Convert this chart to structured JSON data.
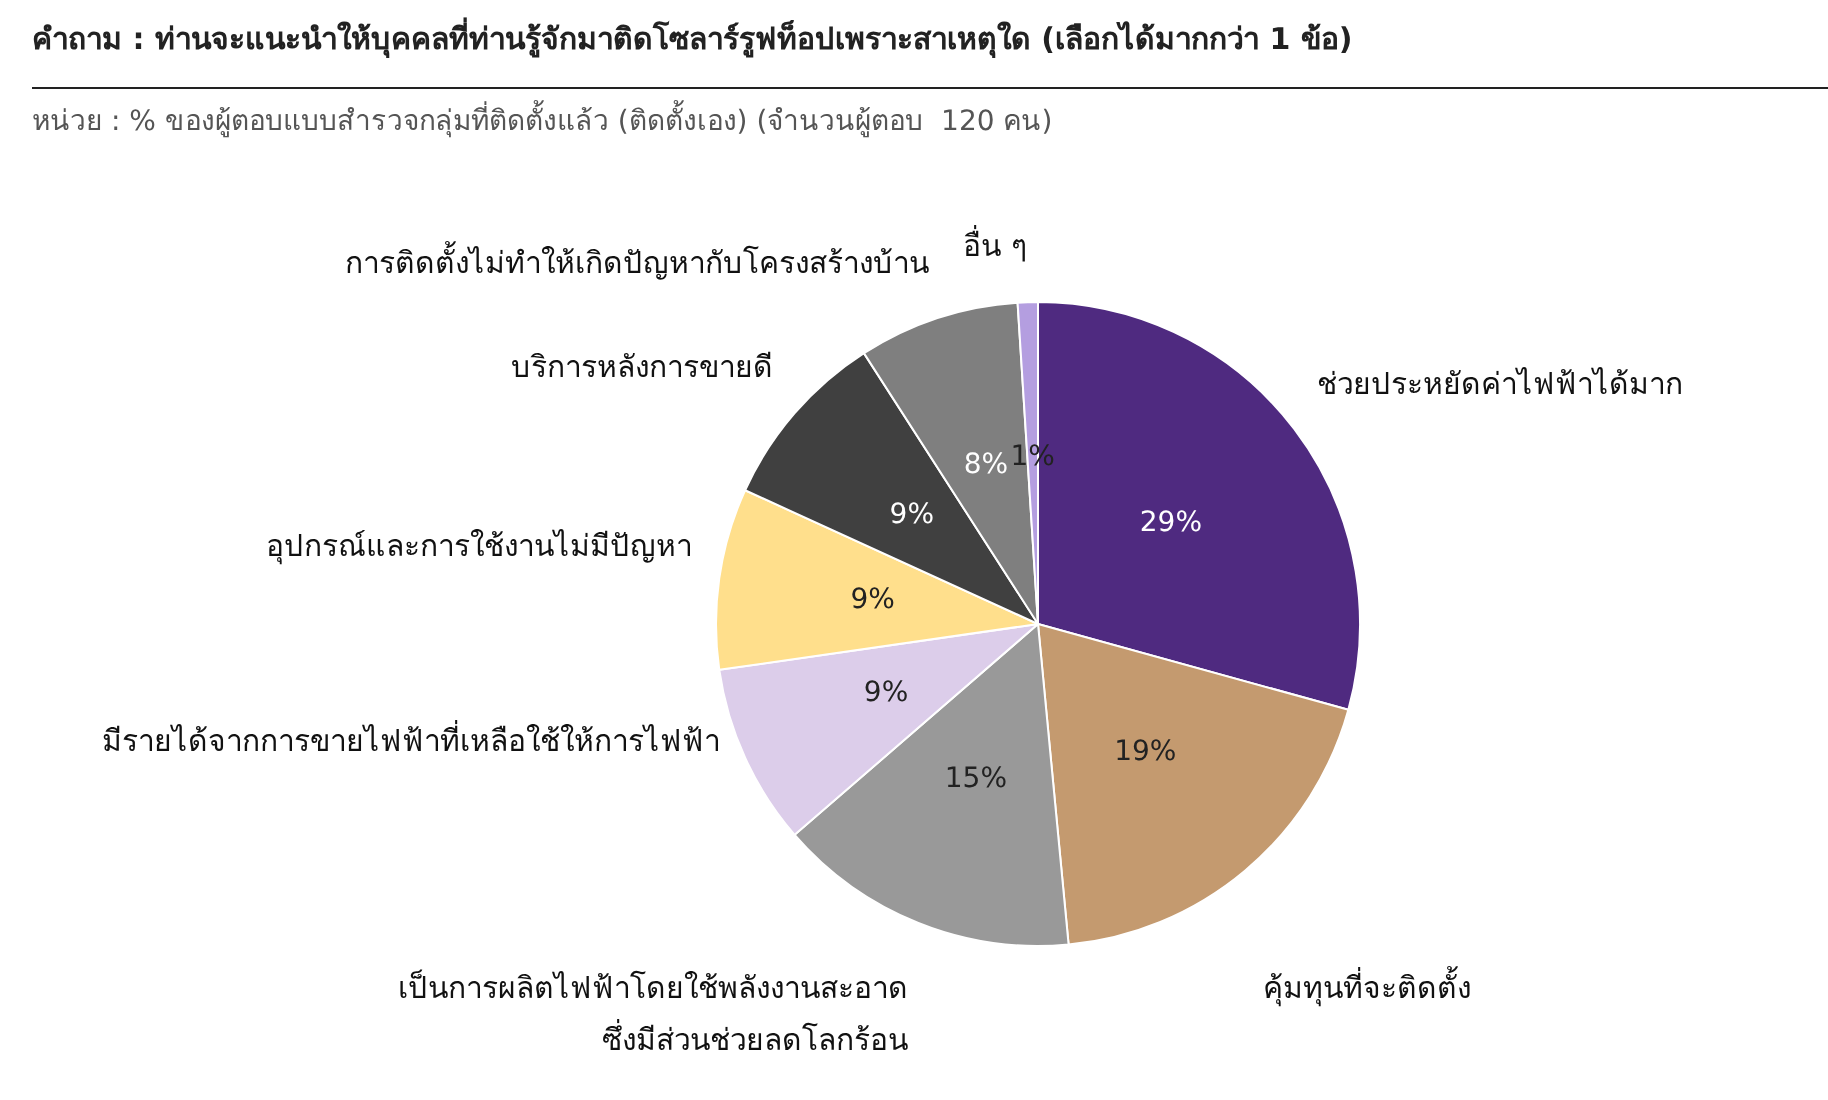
{
  "chart_data": {
    "type": "pie",
    "title": "คำถาม : ท่านจะแนะนำให้บุคคลที่ท่านรู้จักมาติดโซลาร์รูฟท็อปเพราะสาเหตุใด (เลือกได้มากกว่า 1 ข้อ)",
    "subtitle": "หน่วย : % ของผู้ตอบแบบสำรวจกลุ่มที่ติดตั้งแล้ว (ติดตั้งเอง) (จำนวนผู้ตอบ  120 คน)",
    "categories": [
      "ช่วยประหยัดค่าไฟฟ้าได้มาก",
      "คุ้มทุนที่จะติดตั้ง",
      "เป็นการผลิตไฟฟ้าโดยใช้พลังงานสะอาด\nซึ่งมีส่วนช่วยลดโลกร้อน",
      "มีรายได้จากการขายไฟฟ้าที่เหลือใช้ให้การไฟฟ้า",
      "อุปกรณ์และการใช้งานไม่มีปัญหา",
      "บริการหลังการขายดี",
      "การติดตั้งไม่ทำให้เกิดปัญหากับโครงสร้างบ้าน",
      "อื่น ๆ"
    ],
    "values": [
      29,
      19,
      15,
      9,
      9,
      9,
      8,
      1
    ],
    "value_labels": [
      "29%",
      "19%",
      "15%",
      "9%",
      "9%",
      "9%",
      "8%",
      "1%"
    ],
    "colors": [
      "#4f2a80",
      "#c49a6f",
      "#999999",
      "#dccdea",
      "#ffdf8c",
      "#404040",
      "#7f7f7f",
      "#b49ee0"
    ],
    "legend": false
  }
}
